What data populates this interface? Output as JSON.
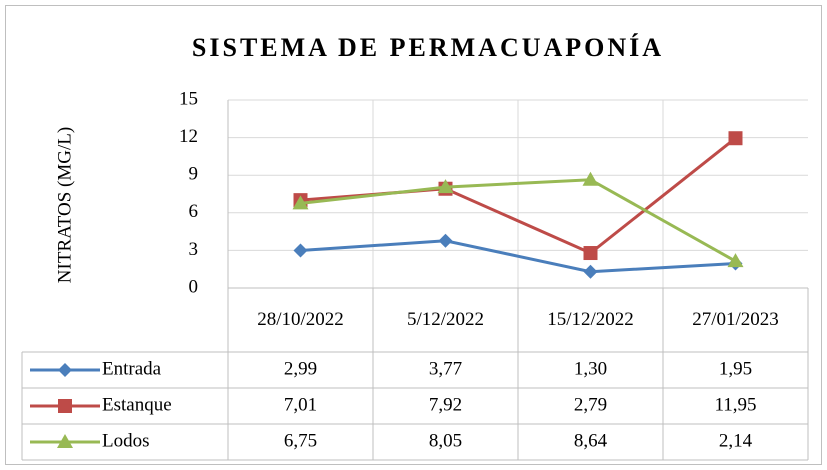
{
  "chart_data": {
    "type": "line",
    "title": "SISTEMA DE PERMACUAPONÍA",
    "y_label": "NITRATOS (MG/L)",
    "categories": [
      "28/10/2022",
      "5/12/2022",
      "15/12/2022",
      "27/01/2023"
    ],
    "series": [
      {
        "name": "Entrada",
        "color": "#4a7ebb",
        "marker": "diamond",
        "values": [
          2.99,
          3.77,
          1.3,
          1.95
        ],
        "value_labels": [
          "2,99",
          "3,77",
          "1,30",
          "1,95"
        ]
      },
      {
        "name": "Estanque",
        "color": "#be4b48",
        "marker": "square",
        "values": [
          7.01,
          7.92,
          2.79,
          11.95
        ],
        "value_labels": [
          "7,01",
          "7,92",
          "2,79",
          "11,95"
        ]
      },
      {
        "name": "Lodos",
        "color": "#98b954",
        "marker": "triangle",
        "values": [
          6.75,
          8.05,
          8.64,
          2.14
        ],
        "value_labels": [
          "6,75",
          "8,05",
          "8,64",
          "2,14"
        ]
      }
    ],
    "ylim": [
      0,
      15
    ],
    "yticks": [
      0,
      3,
      6,
      9,
      12,
      15
    ],
    "grid": true,
    "data_table": true
  }
}
